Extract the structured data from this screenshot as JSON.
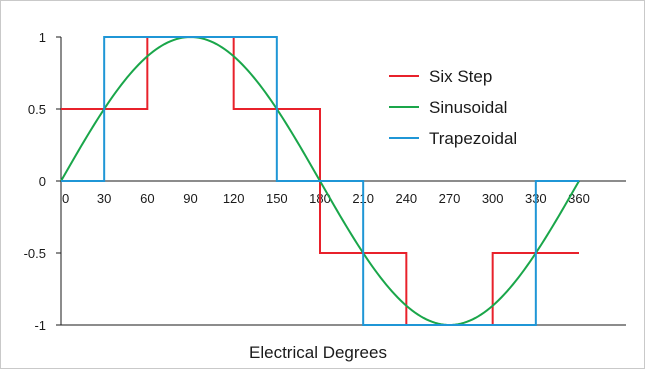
{
  "chart_data": {
    "type": "line",
    "xlabel": "Electrical Degrees",
    "ylabel": "",
    "xlim": [
      0,
      360
    ],
    "ylim": [
      -1,
      1
    ],
    "x_ticks": [
      0,
      30,
      60,
      90,
      120,
      150,
      180,
      210,
      240,
      270,
      300,
      330,
      360
    ],
    "x_tick_labels": [
      "0",
      "30",
      "60",
      "90",
      "120",
      "150",
      "180",
      "210",
      "240",
      "270",
      "300",
      "330",
      "360"
    ],
    "y_ticks": [
      1,
      0.5,
      0,
      -0.5,
      -1
    ],
    "y_tick_labels": [
      "1",
      "0.5",
      "0",
      "-0.5",
      "-1"
    ],
    "grid": false,
    "legend_position": "top-right",
    "series": [
      {
        "name": "Six Step",
        "color": "#e8212b",
        "shape": "step",
        "points": [
          [
            0,
            0.5
          ],
          [
            60,
            0.5
          ],
          [
            60,
            1
          ],
          [
            120,
            1
          ],
          [
            120,
            0.5
          ],
          [
            180,
            0.5
          ],
          [
            180,
            0
          ],
          [
            180,
            -0.5
          ],
          [
            240,
            -0.5
          ],
          [
            240,
            -1
          ],
          [
            300,
            -1
          ],
          [
            300,
            -0.5
          ],
          [
            360,
            -0.5
          ]
        ]
      },
      {
        "name": "Sinusoidal",
        "color": "#1aa64a",
        "shape": "sine",
        "amplitude": 1,
        "period_degrees": 360,
        "x_range": [
          0,
          360
        ]
      },
      {
        "name": "Trapezoidal",
        "color": "#1f96d6",
        "shape": "step",
        "points": [
          [
            0,
            0
          ],
          [
            30,
            0
          ],
          [
            30,
            1
          ],
          [
            150,
            1
          ],
          [
            150,
            0
          ],
          [
            210,
            0
          ],
          [
            210,
            -1
          ],
          [
            330,
            -1
          ],
          [
            330,
            0
          ],
          [
            360,
            0
          ]
        ]
      }
    ]
  }
}
